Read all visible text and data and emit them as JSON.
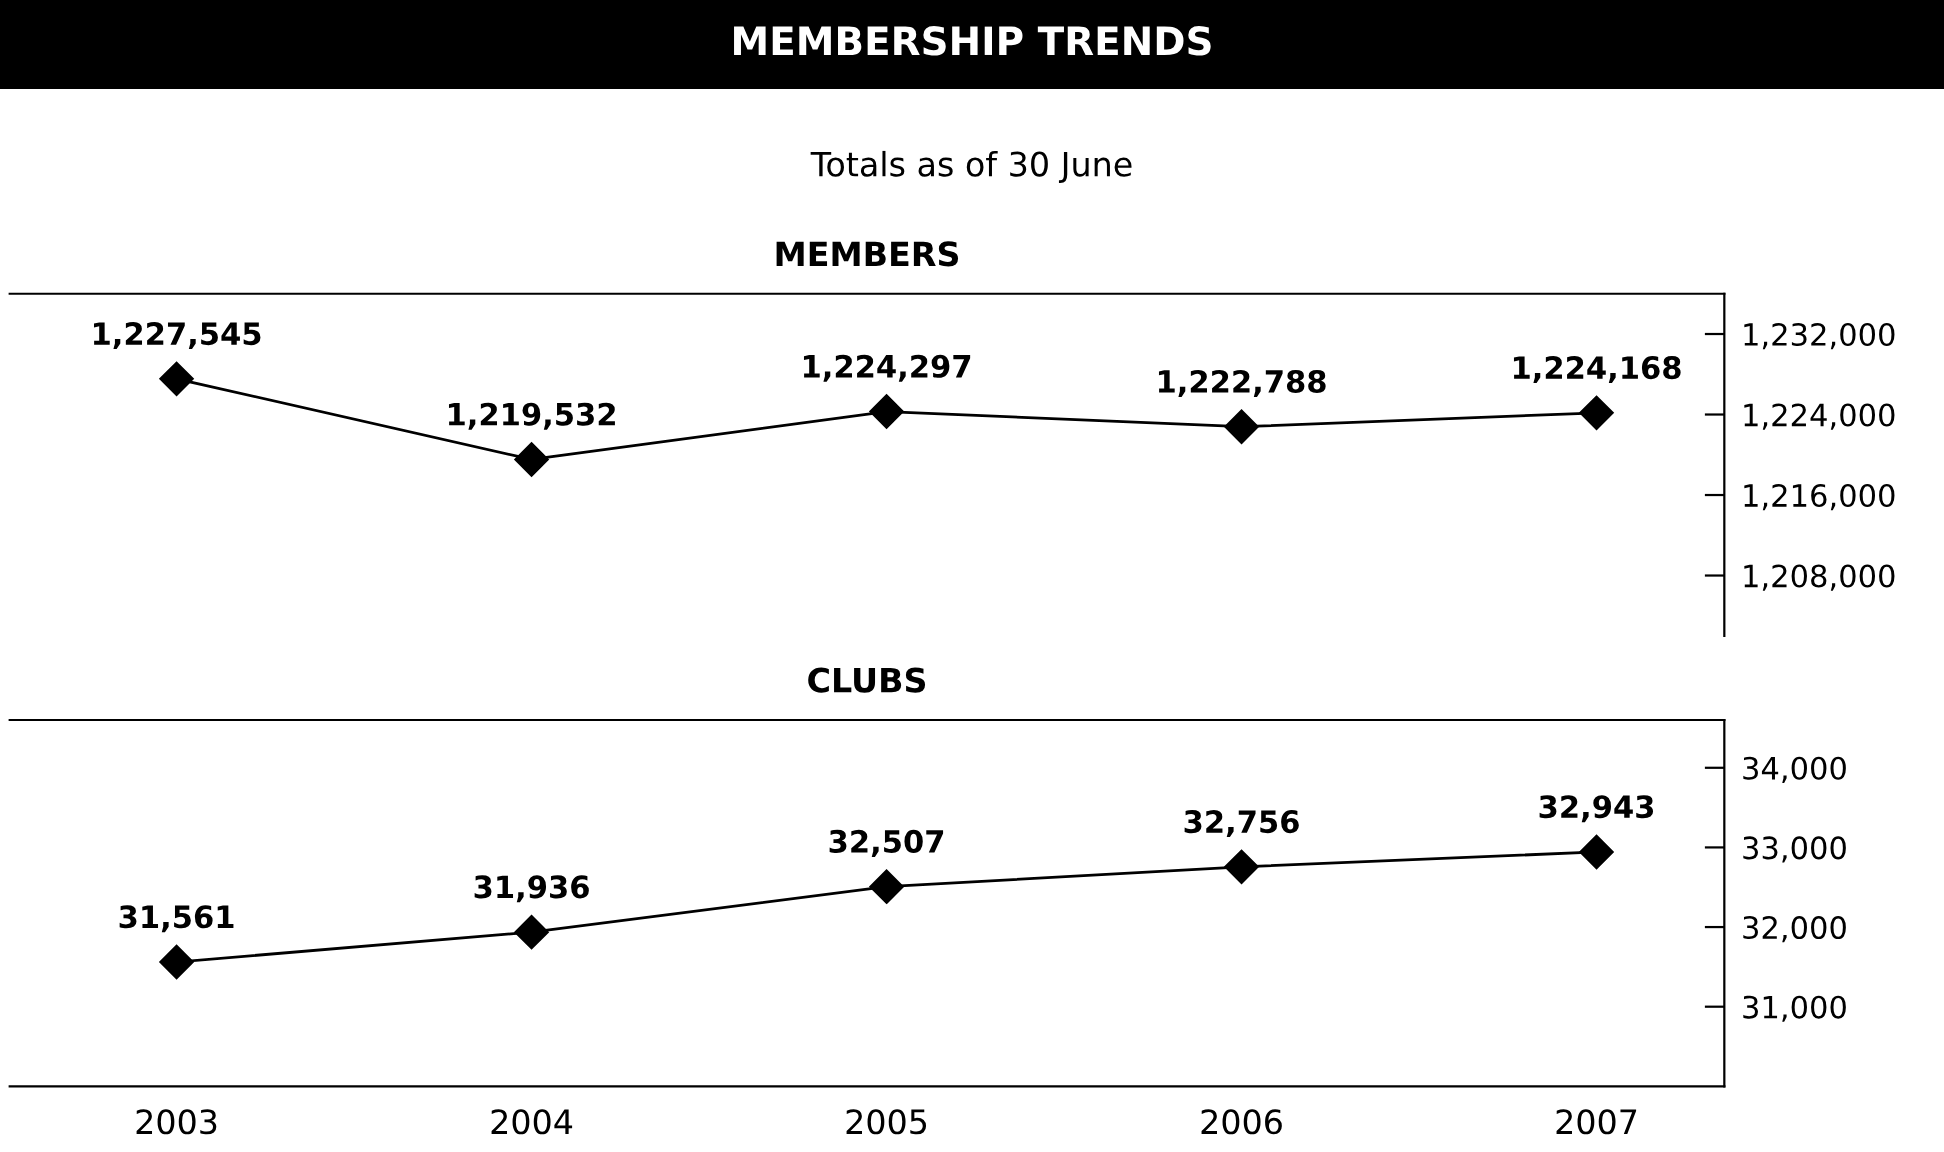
{
  "chart_data": [
    {
      "type": "other",
      "title": "MEMBERSHIP TRENDS",
      "subtitle": "Totals as of 30 June"
    },
    {
      "type": "line",
      "title": "MEMBERS",
      "categories": [
        "2003",
        "2004",
        "2005",
        "2006",
        "2007"
      ],
      "series": [
        {
          "color": "#000000",
          "values": [
            1227545,
            1219532,
            1224297,
            1222788,
            1224168
          ],
          "value_labels": [
            "1,227,545",
            "1,219,532",
            "1,224,297",
            "1,222,788",
            "1,224,168"
          ]
        }
      ],
      "marker": "diamond",
      "line_style": "solid",
      "grid": false,
      "legend": false,
      "tick_labels": "y",
      "ylim": [
        1202000,
        1236000
      ],
      "yticks": [
        {
          "value": 1208000,
          "label": "1,208,000"
        },
        {
          "value": 1216000,
          "label": "1,216,000"
        },
        {
          "value": 1224000,
          "label": "1,224,000"
        },
        {
          "value": 1232000,
          "label": "1,232,000"
        }
      ]
    },
    {
      "type": "line",
      "title": "CLUBS",
      "categories": [
        "2003",
        "2004",
        "2005",
        "2006",
        "2007"
      ],
      "series": [
        {
          "color": "#000000",
          "values": [
            31561,
            31936,
            32507,
            32756,
            32943
          ],
          "value_labels": [
            "31,561",
            "31,936",
            "32,507",
            "32,756",
            "32,943"
          ]
        }
      ],
      "marker": "diamond",
      "line_style": "solid",
      "grid": false,
      "legend": false,
      "ylim": [
        30000,
        34600
      ],
      "yticks": [
        {
          "value": 31000,
          "label": "31,000"
        },
        {
          "value": 32000,
          "label": "32,000"
        },
        {
          "value": 33000,
          "label": "33,000"
        },
        {
          "value": 34000,
          "label": "34,000"
        }
      ]
    }
  ]
}
